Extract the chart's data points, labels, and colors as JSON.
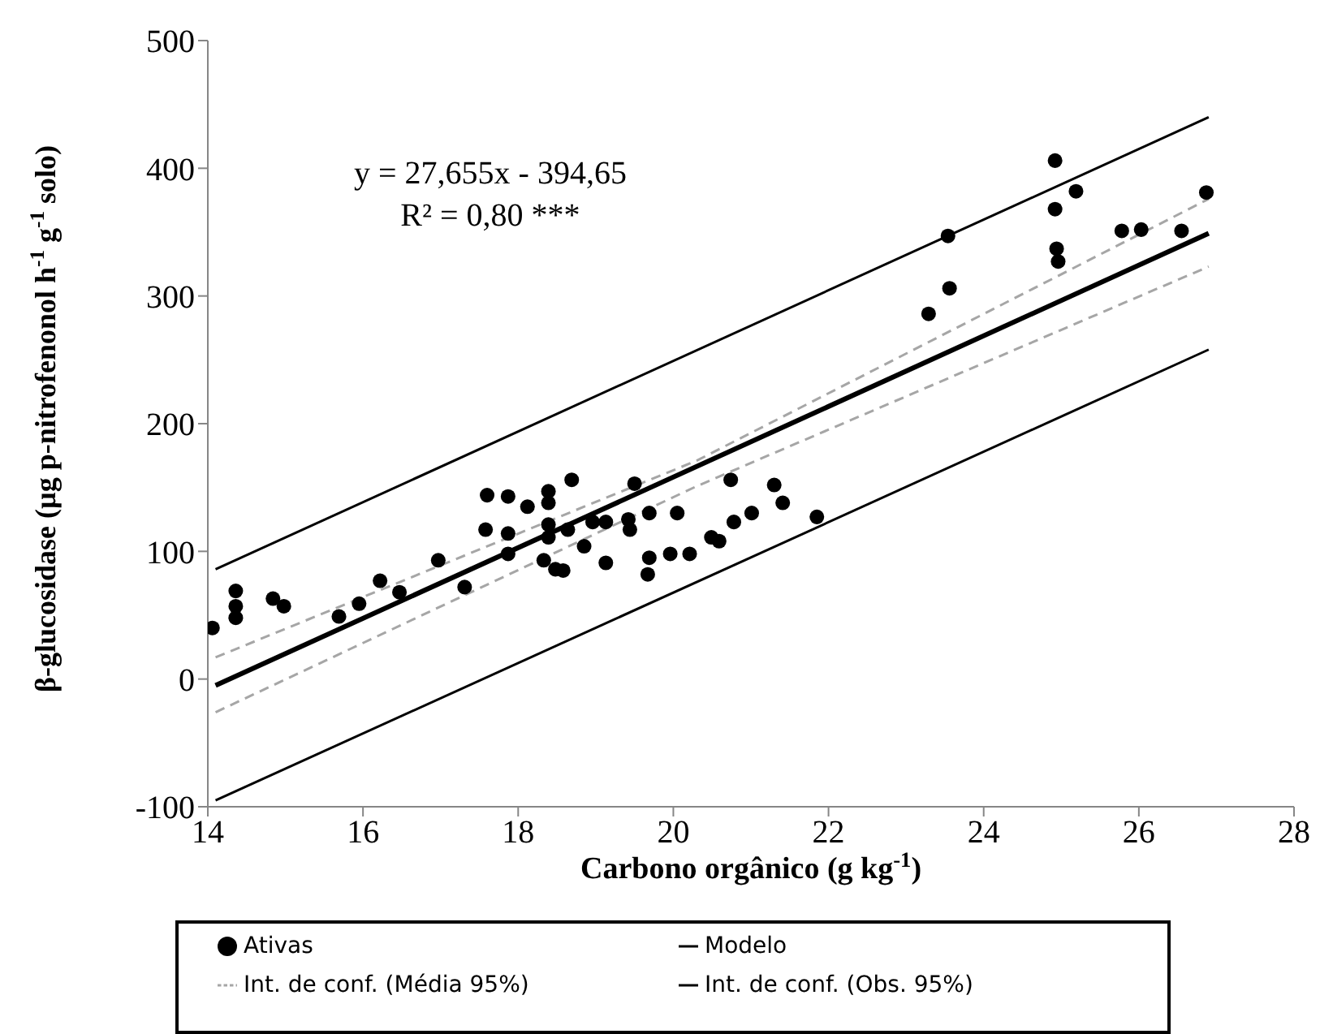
{
  "chart_data": {
    "type": "scatter",
    "xlabel": "Carbono orgânico (g kg$^{-1}$)",
    "ylabel": "β-glucosidase (µg p-nitrofenonol h$^{-1}$ g$^{-1}$ solo)",
    "xlim": [
      14,
      28
    ],
    "xticks": [
      14,
      16,
      18,
      20,
      22,
      24,
      26,
      28
    ],
    "ylim": [
      -100,
      500
    ],
    "yticks": [
      -100,
      0,
      100,
      200,
      300,
      400,
      500
    ],
    "grid": false,
    "legend": "bottom",
    "marker": "circle",
    "annotations": [
      "y = 27,655x - 394,65",
      "R² = 0,80 ***"
    ],
    "series": [
      {
        "name": "Ativas",
        "color": "#000000",
        "x": [
          14.06,
          14.36,
          14.36,
          14.36,
          14.84,
          14.98,
          15.69,
          15.95,
          16.22,
          16.47,
          16.97,
          17.31,
          17.6,
          17.87,
          18.12,
          18.39,
          18.39,
          18.69,
          19.5,
          20.74,
          21.3,
          21.41,
          21.85,
          17.58,
          17.87,
          17.87,
          18.39,
          18.39,
          18.64,
          18.96,
          19.13,
          19.42,
          19.44,
          19.69,
          20.05,
          18.85,
          19.13,
          18.33,
          18.58,
          18.48,
          19.69,
          19.67,
          19.96,
          20.21,
          20.49,
          20.59,
          20.78,
          21.01,
          23.29,
          23.54,
          23.56,
          24.92,
          24.92,
          24.94,
          24.96,
          25.19,
          25.78,
          26.03,
          26.55,
          26.87
        ],
        "values": [
          40,
          57,
          69,
          48,
          63,
          57,
          49,
          59,
          77,
          68,
          93,
          72,
          144,
          143,
          135,
          147,
          138,
          156,
          153,
          156,
          152,
          138,
          127,
          117,
          114,
          98,
          121,
          111,
          117,
          123,
          123,
          125,
          117,
          130,
          130,
          104,
          91,
          93,
          85,
          86,
          95,
          82,
          98,
          98,
          111,
          108,
          123,
          130,
          286,
          347,
          306,
          406,
          368,
          337,
          327,
          382,
          351,
          352,
          351,
          381
        ]
      },
      {
        "name": "Modelo",
        "type": "line",
        "color": "#000000",
        "marker": "none",
        "line_style": "solid",
        "x": [
          14.1,
          26.9
        ],
        "values": [
          -5,
          349
        ]
      },
      {
        "name": "Int. de conf. (Média 95%)",
        "type": "line",
        "color": "#a6a6a6",
        "marker": "none",
        "line_style": "dashed",
        "x": [
          14.1,
          20.3,
          26.9
        ],
        "values": [
          17,
          171,
          376
        ]
      },
      {
        "type": "line",
        "color": "#a6a6a6",
        "marker": "none",
        "line_style": "dashed",
        "x": [
          14.1,
          20.3,
          26.9
        ],
        "values": [
          -26,
          151,
          323
        ]
      },
      {
        "name": "Int. de conf. (Obs. 95%)",
        "type": "line",
        "color": "#000000",
        "marker": "none",
        "line_style": "solid",
        "x": [
          14.1,
          26.9
        ],
        "values": [
          86,
          440
        ]
      },
      {
        "type": "line",
        "color": "#000000",
        "marker": "none",
        "line_style": "solid",
        "x": [
          14.1,
          26.9
        ],
        "values": [
          -95,
          258
        ]
      }
    ]
  }
}
